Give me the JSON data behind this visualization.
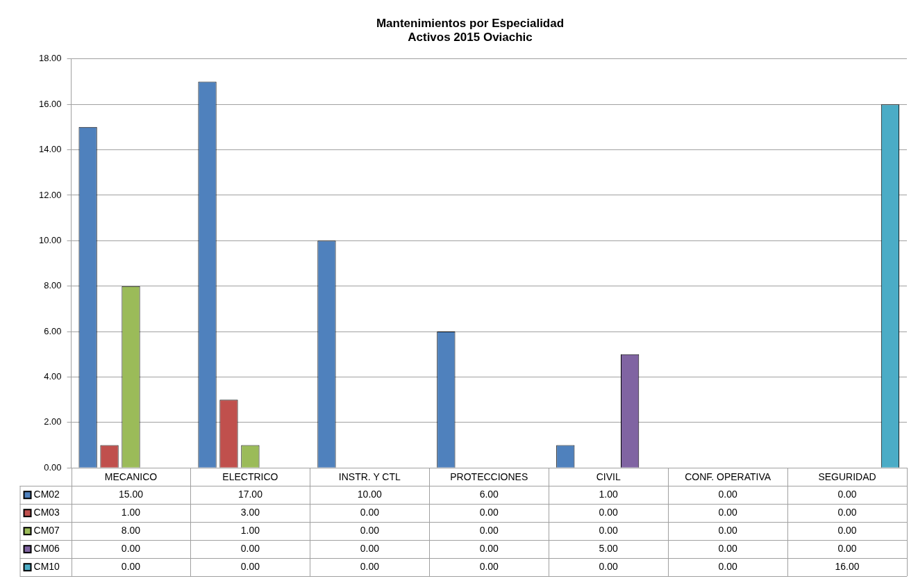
{
  "chart_data": {
    "type": "bar",
    "title": "Mantenimientos por Especialidad\nActivos 2015 Oviachic",
    "categories": [
      "MECANICO",
      "ELECTRICO",
      "INSTR. Y CTL",
      "PROTECCIONES",
      "CIVIL",
      "CONF. OPERATIVA",
      "SEGURIDAD"
    ],
    "series": [
      {
        "name": "CM02",
        "color": "#4f81bd",
        "values": [
          15,
          17,
          10,
          6,
          1,
          0,
          0
        ],
        "value_labels": [
          "15.00",
          "17.00",
          "10.00",
          "6.00",
          "1.00",
          "0.00",
          "0.00"
        ]
      },
      {
        "name": "CM03",
        "color": "#c0504d",
        "values": [
          1,
          3,
          0,
          0,
          0,
          0,
          0
        ],
        "value_labels": [
          "1.00",
          "3.00",
          "0.00",
          "0.00",
          "0.00",
          "0.00",
          "0.00"
        ]
      },
      {
        "name": "CM07",
        "color": "#9bbb59",
        "values": [
          8,
          1,
          0,
          0,
          0,
          0,
          0
        ],
        "value_labels": [
          "8.00",
          "1.00",
          "0.00",
          "0.00",
          "0.00",
          "0.00",
          "0.00"
        ]
      },
      {
        "name": "CM06",
        "color": "#8064a2",
        "values": [
          0,
          0,
          0,
          0,
          5,
          0,
          0
        ],
        "value_labels": [
          "0.00",
          "0.00",
          "0.00",
          "0.00",
          "5.00",
          "0.00",
          "0.00"
        ]
      },
      {
        "name": "CM10",
        "color": "#4bacc6",
        "values": [
          0,
          0,
          0,
          0,
          0,
          0,
          16
        ],
        "value_labels": [
          "0.00",
          "0.00",
          "0.00",
          "0.00",
          "0.00",
          "0.00",
          "16.00"
        ]
      }
    ],
    "ylim": [
      0,
      18
    ],
    "yticks": [
      {
        "value": 0,
        "label": "0.00"
      },
      {
        "value": 2,
        "label": "2.00"
      },
      {
        "value": 4,
        "label": "4.00"
      },
      {
        "value": 6,
        "label": "6.00"
      },
      {
        "value": 8,
        "label": "8.00"
      },
      {
        "value": 10,
        "label": "10.00"
      },
      {
        "value": 12,
        "label": "12.00"
      },
      {
        "value": 14,
        "label": "14.00"
      },
      {
        "value": 16,
        "label": "16.00"
      },
      {
        "value": 18,
        "label": "18.00"
      }
    ],
    "grid": "y",
    "legend": "bottom"
  }
}
